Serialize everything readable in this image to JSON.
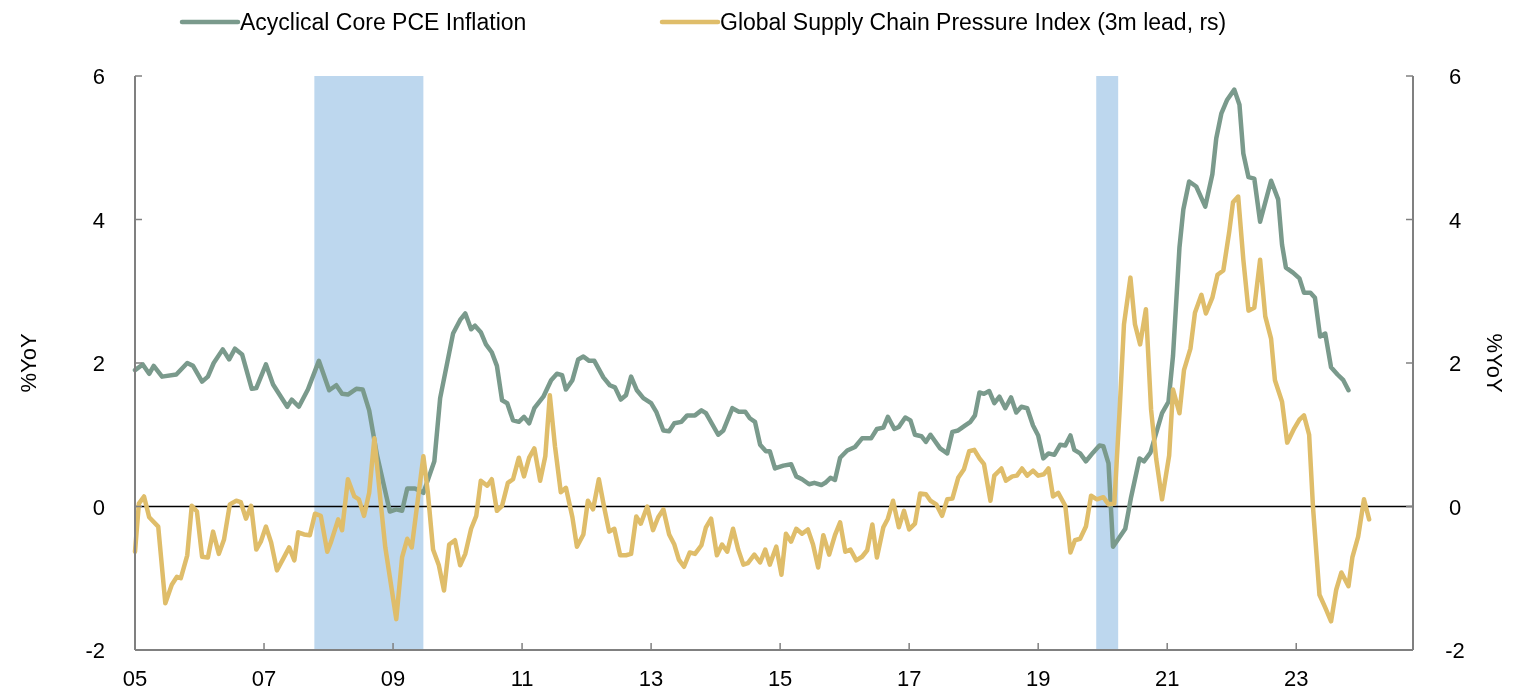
{
  "chart_data": {
    "type": "line",
    "ylabel": "%YoY",
    "y2label": "%YoY",
    "legend": "top",
    "grid": false,
    "line_style": "solid",
    "marker": "none",
    "xlim": [
      2005,
      2024.81
    ],
    "xticks": [
      {
        "value": 2005,
        "label": "05"
      },
      {
        "value": 2007,
        "label": "07"
      },
      {
        "value": 2009,
        "label": "09"
      },
      {
        "value": 2011,
        "label": "11"
      },
      {
        "value": 2013,
        "label": "13"
      },
      {
        "value": 2015,
        "label": "15"
      },
      {
        "value": 2017,
        "label": "17"
      },
      {
        "value": 2019,
        "label": "19"
      },
      {
        "value": 2021,
        "label": "21"
      },
      {
        "value": 2023,
        "label": "23"
      }
    ],
    "ylim": [
      -2,
      6
    ],
    "yticks": [
      -2,
      0,
      2,
      4,
      6
    ],
    "y2lim": [
      -2,
      6
    ],
    "y2ticks": [
      -2,
      0,
      2,
      4,
      6
    ],
    "ref_lines": [
      {
        "axis": "y",
        "value": 0,
        "color": "#000000"
      }
    ],
    "bands": [
      {
        "axis": "x",
        "from": 2007.78,
        "to": 2009.47,
        "color": "#bdd7ee"
      },
      {
        "axis": "x",
        "from": 2019.9,
        "to": 2020.24,
        "color": "#bdd7ee"
      }
    ],
    "series": [
      {
        "name": "Acyclical Core PCE Inflation",
        "color": "#7a9a8c",
        "x": [
          2005.0,
          2005.12,
          2005.22,
          2005.29,
          2005.42,
          2005.64,
          2005.81,
          2005.9,
          2006.04,
          2006.13,
          2006.22,
          2006.36,
          2006.46,
          2006.55,
          2006.66,
          2006.81,
          2006.88,
          2007.03,
          2007.14,
          2007.36,
          2007.43,
          2007.54,
          2007.68,
          2007.85,
          2008.01,
          2008.12,
          2008.21,
          2008.3,
          2008.43,
          2008.53,
          2008.63,
          2008.75,
          2008.95,
          2009.05,
          2009.14,
          2009.22,
          2009.34,
          2009.47,
          2009.64,
          2009.73,
          2009.93,
          2010.04,
          2010.12,
          2010.21,
          2010.27,
          2010.36,
          2010.44,
          2010.53,
          2010.61,
          2010.69,
          2010.77,
          2010.86,
          2010.95,
          2011.03,
          2011.11,
          2011.19,
          2011.33,
          2011.45,
          2011.54,
          2011.62,
          2011.68,
          2011.78,
          2011.87,
          2011.95,
          2012.04,
          2012.12,
          2012.26,
          2012.36,
          2012.44,
          2012.53,
          2012.61,
          2012.69,
          2012.78,
          2012.88,
          2013.0,
          2013.08,
          2013.19,
          2013.28,
          2013.36,
          2013.47,
          2013.56,
          2013.68,
          2013.78,
          2013.85,
          2014.04,
          2014.12,
          2014.26,
          2014.36,
          2014.46,
          2014.53,
          2014.61,
          2014.69,
          2014.78,
          2014.84,
          2014.92,
          2015.05,
          2015.17,
          2015.25,
          2015.34,
          2015.45,
          2015.53,
          2015.64,
          2015.7,
          2015.78,
          2015.85,
          2015.93,
          2016.04,
          2016.16,
          2016.27,
          2016.41,
          2016.5,
          2016.6,
          2016.67,
          2016.77,
          2016.84,
          2016.94,
          2017.02,
          2017.09,
          2017.19,
          2017.26,
          2017.33,
          2017.48,
          2017.59,
          2017.67,
          2017.76,
          2017.87,
          2017.95,
          2018.02,
          2018.09,
          2018.16,
          2018.24,
          2018.32,
          2018.4,
          2018.49,
          2018.58,
          2018.66,
          2018.74,
          2018.83,
          2018.92,
          2019.0,
          2019.08,
          2019.16,
          2019.25,
          2019.34,
          2019.42,
          2019.5,
          2019.56,
          2019.65,
          2019.74,
          2019.85,
          2019.95,
          2020.01,
          2020.09,
          2020.16,
          2020.35,
          2020.44,
          2020.57,
          2020.64,
          2020.74,
          2020.92,
          2021.02,
          2021.09,
          2021.19,
          2021.25,
          2021.34,
          2021.45,
          2021.59,
          2021.7,
          2021.76,
          2021.84,
          2021.93,
          2022.04,
          2022.12,
          2022.18,
          2022.26,
          2022.35,
          2022.44,
          2022.61,
          2022.72,
          2022.78,
          2022.84,
          2022.95,
          2023.05,
          2023.12,
          2023.22,
          2023.29,
          2023.37,
          2023.45,
          2023.54,
          2023.64,
          2023.73,
          2023.81
        ],
        "values": [
          1.9,
          1.98,
          1.85,
          1.96,
          1.81,
          1.84,
          2.0,
          1.96,
          1.74,
          1.81,
          2.0,
          2.19,
          2.05,
          2.2,
          2.12,
          1.64,
          1.65,
          1.98,
          1.7,
          1.39,
          1.49,
          1.39,
          1.63,
          2.03,
          1.62,
          1.69,
          1.57,
          1.56,
          1.64,
          1.63,
          1.34,
          0.72,
          -0.07,
          -0.04,
          -0.06,
          0.25,
          0.25,
          0.19,
          0.63,
          1.51,
          2.41,
          2.6,
          2.69,
          2.47,
          2.52,
          2.43,
          2.26,
          2.15,
          1.96,
          1.48,
          1.44,
          1.2,
          1.18,
          1.25,
          1.16,
          1.37,
          1.53,
          1.76,
          1.85,
          1.83,
          1.63,
          1.76,
          2.05,
          2.09,
          2.03,
          2.03,
          1.8,
          1.69,
          1.66,
          1.49,
          1.55,
          1.81,
          1.62,
          1.51,
          1.44,
          1.32,
          1.06,
          1.05,
          1.16,
          1.18,
          1.27,
          1.27,
          1.34,
          1.3,
          1.0,
          1.06,
          1.37,
          1.32,
          1.32,
          1.23,
          1.18,
          0.86,
          0.77,
          0.77,
          0.53,
          0.57,
          0.59,
          0.42,
          0.38,
          0.31,
          0.33,
          0.3,
          0.33,
          0.4,
          0.37,
          0.68,
          0.78,
          0.83,
          0.95,
          0.95,
          1.08,
          1.1,
          1.25,
          1.08,
          1.11,
          1.24,
          1.2,
          1.0,
          0.98,
          0.9,
          1.0,
          0.81,
          0.74,
          1.04,
          1.06,
          1.13,
          1.18,
          1.27,
          1.59,
          1.57,
          1.61,
          1.44,
          1.53,
          1.37,
          1.52,
          1.31,
          1.39,
          1.37,
          1.13,
          0.99,
          0.67,
          0.74,
          0.72,
          0.86,
          0.85,
          0.99,
          0.79,
          0.74,
          0.63,
          0.75,
          0.85,
          0.84,
          0.6,
          -0.56,
          -0.31,
          0.13,
          0.67,
          0.63,
          0.75,
          1.3,
          1.46,
          2.1,
          3.61,
          4.14,
          4.53,
          4.46,
          4.18,
          4.63,
          5.13,
          5.48,
          5.67,
          5.81,
          5.6,
          4.92,
          4.59,
          4.57,
          3.97,
          4.54,
          4.28,
          3.65,
          3.33,
          3.26,
          3.18,
          2.98,
          2.98,
          2.91,
          2.37,
          2.41,
          1.94,
          1.84,
          1.76,
          1.62
        ]
      },
      {
        "name": "Global Supply Chain Pressure Index (3m lead, rs)",
        "color": "#dfbd6a",
        "axis": "y2",
        "x": [
          2005.0,
          2005.06,
          2005.14,
          2005.22,
          2005.36,
          2005.47,
          2005.57,
          2005.65,
          2005.71,
          2005.81,
          2005.88,
          2005.96,
          2006.04,
          2006.13,
          2006.21,
          2006.3,
          2006.38,
          2006.47,
          2006.57,
          2006.64,
          2006.72,
          2006.8,
          2006.88,
          2006.95,
          2007.03,
          2007.11,
          2007.2,
          2007.29,
          2007.39,
          2007.47,
          2007.53,
          2007.62,
          2007.71,
          2007.79,
          2007.88,
          2007.98,
          2008.04,
          2008.15,
          2008.21,
          2008.3,
          2008.4,
          2008.47,
          2008.55,
          2008.63,
          2008.71,
          2008.81,
          2008.88,
          2009.05,
          2009.14,
          2009.22,
          2009.29,
          2009.47,
          2009.54,
          2009.62,
          2009.71,
          2009.79,
          2009.87,
          2009.96,
          2010.04,
          2010.12,
          2010.21,
          2010.29,
          2010.36,
          2010.46,
          2010.53,
          2010.61,
          2010.69,
          2010.78,
          2010.86,
          2010.95,
          2011.03,
          2011.11,
          2011.19,
          2011.28,
          2011.36,
          2011.43,
          2011.51,
          2011.6,
          2011.68,
          2011.78,
          2011.85,
          2011.95,
          2012.02,
          2012.1,
          2012.19,
          2012.27,
          2012.35,
          2012.43,
          2012.52,
          2012.61,
          2012.69,
          2012.77,
          2012.84,
          2012.94,
          2013.03,
          2013.11,
          2013.19,
          2013.28,
          2013.36,
          2013.43,
          2013.51,
          2013.6,
          2013.68,
          2013.78,
          2013.85,
          2013.93,
          2014.02,
          2014.1,
          2014.18,
          2014.27,
          2014.35,
          2014.43,
          2014.5,
          2014.6,
          2014.69,
          2014.77,
          2014.84,
          2014.94,
          2015.02,
          2015.09,
          2015.17,
          2015.25,
          2015.34,
          2015.43,
          2015.51,
          2015.59,
          2015.67,
          2015.76,
          2015.85,
          2015.93,
          2016.01,
          2016.09,
          2016.18,
          2016.27,
          2016.35,
          2016.43,
          2016.5,
          2016.6,
          2016.67,
          2016.75,
          2016.84,
          2016.92,
          2017.0,
          2017.09,
          2017.17,
          2017.26,
          2017.33,
          2017.42,
          2017.51,
          2017.59,
          2017.67,
          2017.76,
          2017.85,
          2017.93,
          2018.01,
          2018.09,
          2018.16,
          2018.26,
          2018.32,
          2018.43,
          2018.5,
          2018.6,
          2018.67,
          2018.75,
          2018.83,
          2018.92,
          2019.0,
          2019.09,
          2019.16,
          2019.23,
          2019.31,
          2019.42,
          2019.5,
          2019.57,
          2019.65,
          2019.74,
          2019.82,
          2019.91,
          2020.01,
          2020.09,
          2020.18,
          2020.26,
          2020.33,
          2020.43,
          2020.5,
          2020.58,
          2020.67,
          2020.75,
          2020.83,
          2020.92,
          2021.03,
          2021.09,
          2021.19,
          2021.26,
          2021.36,
          2021.43,
          2021.53,
          2021.6,
          2021.7,
          2021.78,
          2021.87,
          2021.96,
          2022.02,
          2022.1,
          2022.18,
          2022.26,
          2022.35,
          2022.44,
          2022.52,
          2022.61,
          2022.67,
          2022.78,
          2022.86,
          2022.97,
          2023.05,
          2023.12,
          2023.2,
          2023.26,
          2023.36,
          2023.45,
          2023.54,
          2023.62,
          2023.7,
          2023.81,
          2023.87,
          2023.96,
          2024.05,
          2024.13
        ],
        "values": [
          -0.63,
          0.04,
          0.14,
          -0.15,
          -0.28,
          -1.35,
          -1.09,
          -0.98,
          -1.0,
          -0.68,
          0.01,
          -0.07,
          -0.7,
          -0.71,
          -0.35,
          -0.66,
          -0.46,
          0.03,
          0.08,
          0.06,
          -0.17,
          0.01,
          -0.6,
          -0.49,
          -0.28,
          -0.5,
          -0.89,
          -0.74,
          -0.57,
          -0.75,
          -0.36,
          -0.39,
          -0.4,
          -0.1,
          -0.13,
          -0.63,
          -0.49,
          -0.18,
          -0.33,
          0.38,
          0.14,
          0.1,
          -0.13,
          0.19,
          0.95,
          0.04,
          -0.57,
          -1.57,
          -0.71,
          -0.45,
          -0.57,
          0.7,
          0.19,
          -0.6,
          -0.82,
          -1.17,
          -0.53,
          -0.47,
          -0.82,
          -0.66,
          -0.31,
          -0.13,
          0.36,
          0.29,
          0.38,
          -0.06,
          0.01,
          0.33,
          0.38,
          0.68,
          0.42,
          0.68,
          0.81,
          0.36,
          0.7,
          1.55,
          0.84,
          0.2,
          0.26,
          -0.15,
          -0.56,
          -0.39,
          0.08,
          -0.04,
          0.38,
          0.0,
          -0.35,
          -0.31,
          -0.68,
          -0.68,
          -0.66,
          -0.14,
          -0.24,
          0.0,
          -0.33,
          -0.15,
          -0.04,
          -0.39,
          -0.53,
          -0.74,
          -0.84,
          -0.64,
          -0.66,
          -0.54,
          -0.29,
          -0.17,
          -0.68,
          -0.53,
          -0.63,
          -0.31,
          -0.6,
          -0.81,
          -0.79,
          -0.67,
          -0.78,
          -0.6,
          -0.81,
          -0.56,
          -0.95,
          -0.38,
          -0.49,
          -0.31,
          -0.38,
          -0.32,
          -0.53,
          -0.85,
          -0.4,
          -0.67,
          -0.4,
          -0.22,
          -0.63,
          -0.6,
          -0.75,
          -0.7,
          -0.61,
          -0.25,
          -0.71,
          -0.29,
          -0.17,
          0.08,
          -0.29,
          -0.06,
          -0.32,
          -0.24,
          0.18,
          0.17,
          0.08,
          0.03,
          -0.13,
          0.1,
          0.11,
          0.4,
          0.52,
          0.77,
          0.79,
          0.67,
          0.59,
          0.08,
          0.43,
          0.53,
          0.36,
          0.42,
          0.43,
          0.53,
          0.43,
          0.5,
          0.43,
          0.45,
          0.53,
          0.14,
          0.19,
          0.01,
          -0.64,
          -0.47,
          -0.45,
          -0.28,
          0.15,
          0.1,
          0.13,
          0.03,
          0.04,
          1.3,
          2.54,
          3.19,
          2.54,
          2.26,
          2.75,
          1.35,
          0.66,
          0.1,
          0.71,
          1.63,
          1.3,
          1.9,
          2.2,
          2.7,
          2.95,
          2.69,
          2.91,
          3.23,
          3.29,
          3.82,
          4.24,
          4.32,
          3.44,
          2.73,
          2.77,
          3.44,
          2.65,
          2.34,
          1.76,
          1.46,
          0.89,
          1.09,
          1.21,
          1.27,
          1.0,
          -0.01,
          -1.23,
          -1.41,
          -1.6,
          -1.16,
          -0.92,
          -1.11,
          -0.71,
          -0.42,
          0.1,
          -0.18
        ]
      }
    ]
  }
}
